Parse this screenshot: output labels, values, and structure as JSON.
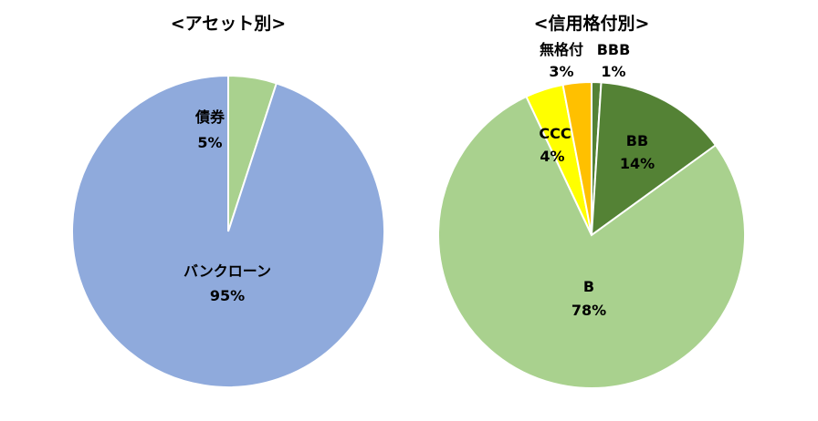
{
  "chart_data": [
    {
      "type": "pie",
      "title": "<アセット別>",
      "slices": [
        {
          "label": "債券",
          "value": 5,
          "value_label": "5%",
          "color": "#a9d18e"
        },
        {
          "label": "バンクローン",
          "value": 95,
          "value_label": "95%",
          "color": "#8faadc"
        }
      ]
    },
    {
      "type": "pie",
      "title": "<信用格付別>",
      "slices": [
        {
          "label": "BBB",
          "value": 1,
          "value_label": "1%",
          "color": "#548235"
        },
        {
          "label": "BB",
          "value": 14,
          "value_label": "14%",
          "color": "#548235"
        },
        {
          "label": "B",
          "value": 78,
          "value_label": "78%",
          "color": "#a9d18e"
        },
        {
          "label": "CCC",
          "value": 4,
          "value_label": "4%",
          "color": "#ffff00"
        },
        {
          "label": "無格付",
          "value": 3,
          "value_label": "3%",
          "color": "#ffc000"
        }
      ]
    }
  ]
}
